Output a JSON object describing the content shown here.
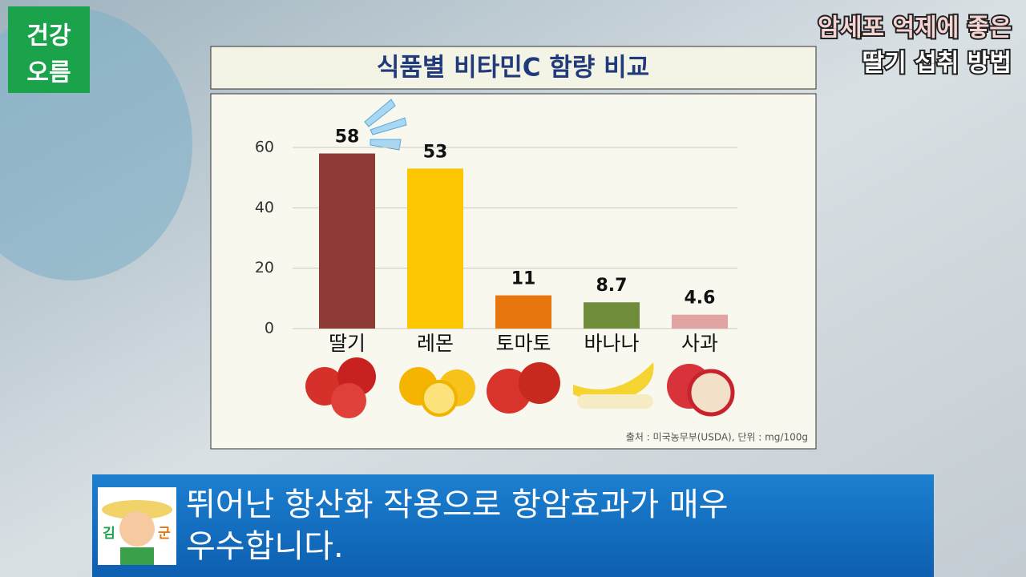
{
  "logo": [
    "건강",
    "오름"
  ],
  "headline": [
    "암세포 억제에 좋은",
    "딸기 섭취 방법"
  ],
  "chart_data": {
    "type": "bar",
    "title": "식품별 비타민C 함량 비교",
    "categories": [
      "딸기",
      "레몬",
      "토마토",
      "바나나",
      "사과"
    ],
    "values": [
      58,
      53,
      11,
      8.7,
      4.6
    ],
    "colors": [
      "#8e3b36",
      "#fcc600",
      "#e8760e",
      "#6f8c3b",
      "#e2a4a3"
    ],
    "ylim": [
      0,
      70
    ],
    "yticks": [
      0,
      20,
      40,
      60
    ],
    "grid": true,
    "source": "출처 : 미국농무부(USDA), 단위 : mg/100g"
  },
  "caption": {
    "lines": [
      "뛰어난 항산화 작용으로 항암효과가 매우",
      "우수합니다."
    ],
    "avatar": [
      "김",
      "군"
    ]
  }
}
